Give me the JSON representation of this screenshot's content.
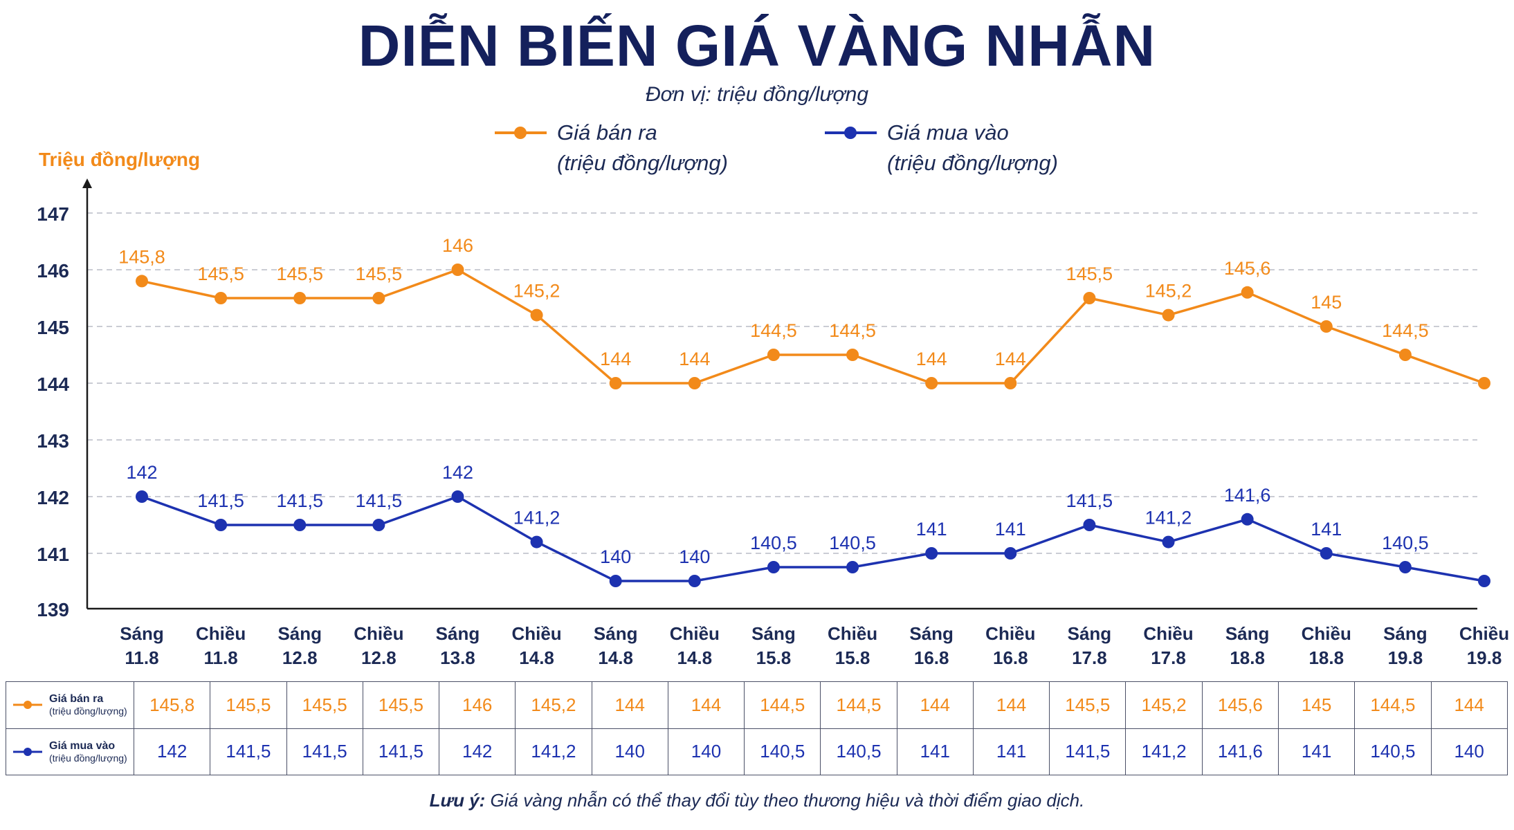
{
  "title": "DIỄN BIẾN GIÁ VÀNG NHẪN",
  "subtitle": "Đơn vị: triệu đồng/lượng",
  "note_prefix": "Lưu ý:",
  "note_text": " Giá vàng nhẫn có thể thay đổi tùy theo thương hiệu và thời điểm giao dịch.",
  "colors": {
    "sell": "#f28a1a",
    "buy": "#1d32b0",
    "title": "#14205c",
    "grid": "#b9bcc6"
  },
  "chart_data": {
    "type": "line",
    "ylabel": "Triệu đồng/lượng",
    "ylim": [
      139,
      147
    ],
    "yticks": [
      139,
      141,
      142,
      143,
      144,
      145,
      146,
      147
    ],
    "grid": true,
    "legend_position": "top-center",
    "categories": [
      [
        "Sáng",
        "11.8"
      ],
      [
        "Chiều",
        "11.8"
      ],
      [
        "Sáng",
        "12.8"
      ],
      [
        "Chiều",
        "12.8"
      ],
      [
        "Sáng",
        "13.8"
      ],
      [
        "Chiều",
        "14.8"
      ],
      [
        "Sáng",
        "14.8"
      ],
      [
        "Chiều",
        "14.8"
      ],
      [
        "Sáng",
        "15.8"
      ],
      [
        "Chiều",
        "15.8"
      ],
      [
        "Sáng",
        "16.8"
      ],
      [
        "Chiều",
        "16.8"
      ],
      [
        "Sáng",
        "17.8"
      ],
      [
        "Chiều",
        "17.8"
      ],
      [
        "Sáng",
        "18.8"
      ],
      [
        "Chiều",
        "18.8"
      ],
      [
        "Sáng",
        "19.8"
      ],
      [
        "Chiều",
        "19.8"
      ]
    ],
    "series": [
      {
        "name": "Giá bán ra",
        "legend_name": "Giá bán ra",
        "legend_unit": "(triệu đồng/lượng)",
        "color": "#f28a1a",
        "values": [
          145.8,
          145.5,
          145.5,
          145.5,
          146,
          145.2,
          144,
          144,
          144.5,
          144.5,
          144,
          144,
          145.5,
          145.2,
          145.6,
          145,
          144.5,
          144
        ],
        "point_labels": [
          "145,8",
          "145,5",
          "145,5",
          "145,5",
          "146",
          "145,2",
          "144",
          "144",
          "144,5",
          "144,5",
          "144",
          "144",
          "145,5",
          "145,2",
          "145,6",
          "145",
          "144,5",
          ""
        ],
        "table_values": [
          "145,8",
          "145,5",
          "145,5",
          "145,5",
          "146",
          "145,2",
          "144",
          "144",
          "144,5",
          "144,5",
          "144",
          "144",
          "145,5",
          "145,2",
          "145,6",
          "145",
          "144,5",
          "144"
        ]
      },
      {
        "name": "Giá mua vào",
        "legend_name": "Giá mua vào",
        "legend_unit": "(triệu đồng/lượng)",
        "color": "#1d32b0",
        "values": [
          142,
          141.5,
          141.5,
          141.5,
          142,
          141.2,
          140,
          140,
          140.5,
          140.5,
          141,
          141,
          141.5,
          141.2,
          141.6,
          141,
          140.5,
          140
        ],
        "point_labels": [
          "142",
          "141,5",
          "141,5",
          "141,5",
          "142",
          "141,2",
          "140",
          "140",
          "140,5",
          "140,5",
          "141",
          "141",
          "141,5",
          "141,2",
          "141,6",
          "141",
          "140,5",
          ""
        ],
        "table_values": [
          "142",
          "141,5",
          "141,5",
          "141,5",
          "142",
          "141,2",
          "140",
          "140",
          "140,5",
          "140,5",
          "141",
          "141",
          "141,5",
          "141,2",
          "141,6",
          "141",
          "140,5",
          "140"
        ]
      }
    ]
  },
  "table": {
    "sell_name": "Giá bán ra",
    "sell_unit": "(triệu đồng/lượng)",
    "buy_name": "Giá mua vào",
    "buy_unit": "(triệu đồng/lượng)"
  }
}
